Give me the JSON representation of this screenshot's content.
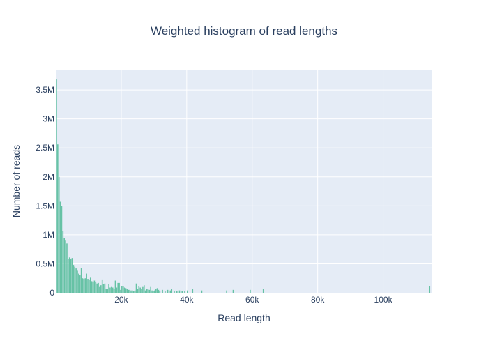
{
  "chart_data": {
    "type": "bar",
    "title": "Weighted histogram of read lengths",
    "xlabel": "Read length",
    "ylabel": "Number of reads",
    "xlim": [
      0,
      115000
    ],
    "ylim": [
      0,
      3850000
    ],
    "x_ticks": [
      {
        "value": 20000,
        "label": "20k"
      },
      {
        "value": 40000,
        "label": "40k"
      },
      {
        "value": 60000,
        "label": "60k"
      },
      {
        "value": 80000,
        "label": "80k"
      },
      {
        "value": 100000,
        "label": "100k"
      }
    ],
    "y_ticks": [
      {
        "value": 0,
        "label": "0"
      },
      {
        "value": 500000,
        "label": "0.5M"
      },
      {
        "value": 1000000,
        "label": "1M"
      },
      {
        "value": 1500000,
        "label": "1.5M"
      },
      {
        "value": 2000000,
        "label": "2M"
      },
      {
        "value": 2500000,
        "label": "2.5M"
      },
      {
        "value": 3000000,
        "label": "3M"
      },
      {
        "value": 3500000,
        "label": "3.5M"
      }
    ],
    "bar_width": 400,
    "grid": true,
    "colors": {
      "bar": "#66c2a5",
      "plot_bg": "#e5ecf6",
      "grid": "#ffffff",
      "text": "#2a3f5f"
    },
    "bars": [
      [
        200,
        3680000
      ],
      [
        600,
        2560000
      ],
      [
        1000,
        2000000
      ],
      [
        1400,
        1570000
      ],
      [
        1800,
        1500000
      ],
      [
        2200,
        1060000
      ],
      [
        2600,
        950000
      ],
      [
        3000,
        900000
      ],
      [
        3400,
        850000
      ],
      [
        3800,
        580000
      ],
      [
        4200,
        610000
      ],
      [
        4600,
        590000
      ],
      [
        5000,
        600000
      ],
      [
        5400,
        480000
      ],
      [
        5800,
        450000
      ],
      [
        6200,
        420000
      ],
      [
        6600,
        380000
      ],
      [
        7000,
        330000
      ],
      [
        7400,
        300000
      ],
      [
        7800,
        430000
      ],
      [
        8200,
        250000
      ],
      [
        8600,
        240000
      ],
      [
        9000,
        250000
      ],
      [
        9400,
        330000
      ],
      [
        9800,
        240000
      ],
      [
        10200,
        230000
      ],
      [
        10600,
        260000
      ],
      [
        11000,
        200000
      ],
      [
        11400,
        180000
      ],
      [
        11800,
        210000
      ],
      [
        12200,
        190000
      ],
      [
        12600,
        160000
      ],
      [
        13000,
        170000
      ],
      [
        13400,
        100000
      ],
      [
        13800,
        130000
      ],
      [
        14200,
        230000
      ],
      [
        14600,
        150000
      ],
      [
        15000,
        160000
      ],
      [
        15400,
        70000
      ],
      [
        15800,
        60000
      ],
      [
        16200,
        150000
      ],
      [
        16600,
        90000
      ],
      [
        17000,
        100000
      ],
      [
        17400,
        90000
      ],
      [
        17800,
        70000
      ],
      [
        18200,
        210000
      ],
      [
        18600,
        90000
      ],
      [
        19000,
        170000
      ],
      [
        19400,
        170000
      ],
      [
        19800,
        50000
      ],
      [
        20200,
        110000
      ],
      [
        20600,
        110000
      ],
      [
        21000,
        90000
      ],
      [
        21400,
        80000
      ],
      [
        21800,
        60000
      ],
      [
        22200,
        50000
      ],
      [
        22600,
        50000
      ],
      [
        23000,
        40000
      ],
      [
        23400,
        40000
      ],
      [
        23800,
        30000
      ],
      [
        24200,
        40000
      ],
      [
        24600,
        160000
      ],
      [
        25000,
        70000
      ],
      [
        25400,
        110000
      ],
      [
        25800,
        90000
      ],
      [
        26200,
        60000
      ],
      [
        26600,
        100000
      ],
      [
        27000,
        130000
      ],
      [
        27400,
        40000
      ],
      [
        27800,
        60000
      ],
      [
        28200,
        60000
      ],
      [
        28600,
        50000
      ],
      [
        29000,
        100000
      ],
      [
        29400,
        40000
      ],
      [
        29800,
        30000
      ],
      [
        30200,
        40000
      ],
      [
        30600,
        60000
      ],
      [
        31000,
        80000
      ],
      [
        31400,
        50000
      ],
      [
        31800,
        30000
      ],
      [
        32600,
        50000
      ],
      [
        33400,
        30000
      ],
      [
        34200,
        50000
      ],
      [
        35000,
        40000
      ],
      [
        35400,
        60000
      ],
      [
        36200,
        30000
      ],
      [
        37000,
        30000
      ],
      [
        37800,
        40000
      ],
      [
        38600,
        30000
      ],
      [
        39400,
        30000
      ],
      [
        40200,
        40000
      ],
      [
        41800,
        70000
      ],
      [
        44600,
        40000
      ],
      [
        52200,
        40000
      ],
      [
        54200,
        50000
      ],
      [
        59400,
        50000
      ],
      [
        63400,
        60000
      ],
      [
        114200,
        110000
      ]
    ]
  }
}
